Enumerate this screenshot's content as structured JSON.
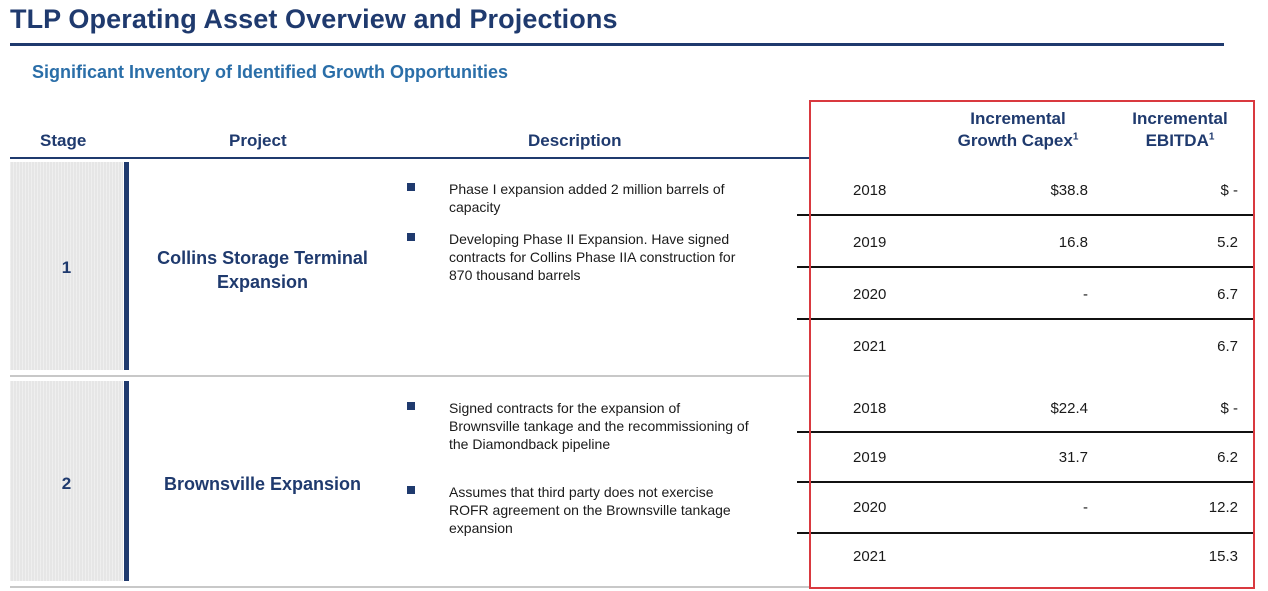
{
  "page": {
    "title": "TLP Operating Asset Overview and Projections",
    "subtitle": "Significant Inventory of Identified Growth Opportunities"
  },
  "table": {
    "headers": {
      "stage": "Stage",
      "project": "Project",
      "description": "Description",
      "capex_line1": "Incremental",
      "capex_line2": "Growth Capex",
      "ebitda_line1": "Incremental",
      "ebitda_line2": "EBITDA",
      "footnote_marker": "1"
    },
    "projects": [
      {
        "stage": "1",
        "name_line1": "Collins Storage Terminal",
        "name_line2": "Expansion",
        "bullets": [
          "Phase I expansion added 2 million barrels of capacity",
          "Developing Phase II Expansion. Have signed contracts for Collins Phase IIA construction for 870 thousand barrels"
        ],
        "rows": [
          {
            "year": "2018",
            "capex": "$38.8",
            "ebitda": "$ -"
          },
          {
            "year": "2019",
            "capex": "16.8",
            "ebitda": "5.2"
          },
          {
            "year": "2020",
            "capex": "-",
            "ebitda": "6.7"
          },
          {
            "year": "2021",
            "capex": "",
            "ebitda": "6.7"
          }
        ]
      },
      {
        "stage": "2",
        "name_line1": "Brownsville Expansion",
        "name_line2": "",
        "bullets": [
          "Signed contracts for the expansion of Brownsville tankage and the recommissioning of the Diamondback pipeline",
          "Assumes that third party does not exercise ROFR agreement on the Brownsville tankage expansion"
        ],
        "rows": [
          {
            "year": "2018",
            "capex": "$22.4",
            "ebitda": "$ -"
          },
          {
            "year": "2019",
            "capex": "31.7",
            "ebitda": "6.2"
          },
          {
            "year": "2020",
            "capex": "-",
            "ebitda": "12.2"
          },
          {
            "year": "2021",
            "capex": "",
            "ebitda": "15.3"
          }
        ]
      }
    ]
  },
  "colors": {
    "navy": "#1f3a6e",
    "subtitle_blue": "#2a6ea8",
    "highlight_red": "#d9393f"
  }
}
